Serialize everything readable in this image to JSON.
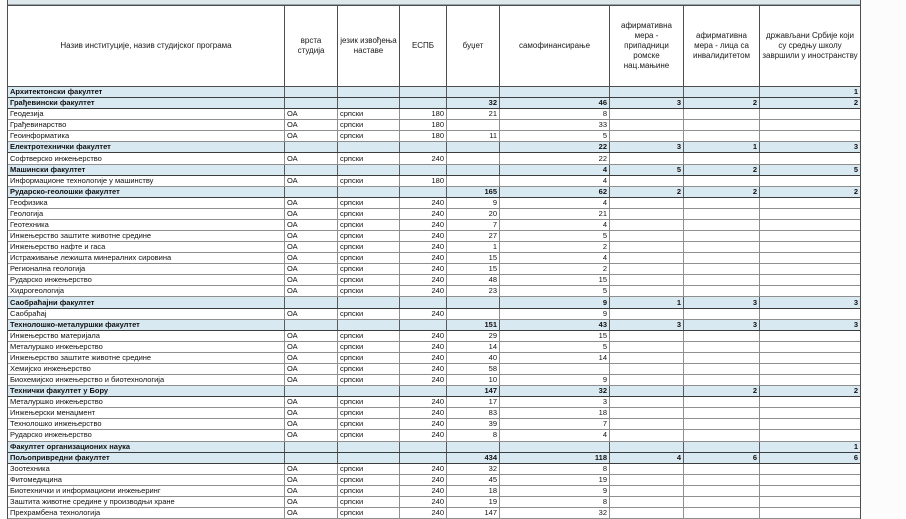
{
  "table": {
    "columns": [
      {
        "key": "n",
        "label": "Назив институције, назив студијског програма",
        "type": "txt"
      },
      {
        "key": "v",
        "label": "врста студија",
        "type": "txt"
      },
      {
        "key": "j",
        "label": "језик извођења наставе",
        "type": "txt"
      },
      {
        "key": "e",
        "label": "ЕСПБ",
        "type": "num"
      },
      {
        "key": "b",
        "label": "буџет",
        "type": "num"
      },
      {
        "key": "s",
        "label": "самофинансирање",
        "type": "num"
      },
      {
        "key": "r",
        "label": "афирмативна мера - припадници ромске нац.мањине",
        "type": "num"
      },
      {
        "key": "i",
        "label": "афирмативна мера - лица са инвалидитетом",
        "type": "num"
      },
      {
        "key": "d",
        "label": "држављани Србије који су средњу школу завршили у иностранству",
        "type": "num"
      }
    ],
    "rows": [
      {
        "type": "section",
        "n": "Архитектонски факултет",
        "v": "",
        "j": "",
        "e": "",
        "b": "",
        "s": "",
        "r": "",
        "i": "",
        "d": "1"
      },
      {
        "type": "section",
        "n": "Грађевински факултет",
        "v": "",
        "j": "",
        "e": "",
        "b": "32",
        "s": "46",
        "r": "3",
        "i": "2",
        "d": "2"
      },
      {
        "type": "program",
        "n": "Геодезија",
        "v": "ОА",
        "j": "српски",
        "e": "180",
        "b": "21",
        "s": "8",
        "r": "",
        "i": "",
        "d": ""
      },
      {
        "type": "program",
        "n": "Грађевинарство",
        "v": "ОА",
        "j": "српски",
        "e": "180",
        "b": "",
        "s": "33",
        "r": "",
        "i": "",
        "d": ""
      },
      {
        "type": "program",
        "n": "Геоинформатика",
        "v": "ОА",
        "j": "српски",
        "e": "180",
        "b": "11",
        "s": "5",
        "r": "",
        "i": "",
        "d": ""
      },
      {
        "type": "section",
        "n": "Електротехнички факултет",
        "v": "",
        "j": "",
        "e": "",
        "b": "",
        "s": "22",
        "r": "3",
        "i": "1",
        "d": "3"
      },
      {
        "type": "program",
        "n": "Софтверско инжењерство",
        "v": "ОА",
        "j": "српски",
        "e": "240",
        "b": "",
        "s": "22",
        "r": "",
        "i": "",
        "d": ""
      },
      {
        "type": "section",
        "n": "Машински факултет",
        "v": "",
        "j": "",
        "e": "",
        "b": "",
        "s": "4",
        "r": "5",
        "i": "2",
        "d": "5"
      },
      {
        "type": "program",
        "n": "Информационе технологије у машинству",
        "v": "ОА",
        "j": "српски",
        "e": "180",
        "b": "",
        "s": "4",
        "r": "",
        "i": "",
        "d": ""
      },
      {
        "type": "section",
        "n": "Рударско-геолошки факултет",
        "v": "",
        "j": "",
        "e": "",
        "b": "165",
        "s": "62",
        "r": "2",
        "i": "2",
        "d": "2"
      },
      {
        "type": "program",
        "n": "Геофизика",
        "v": "ОА",
        "j": "српски",
        "e": "240",
        "b": "9",
        "s": "4",
        "r": "",
        "i": "",
        "d": ""
      },
      {
        "type": "program",
        "n": "Геологија",
        "v": "ОА",
        "j": "српски",
        "e": "240",
        "b": "20",
        "s": "21",
        "r": "",
        "i": "",
        "d": ""
      },
      {
        "type": "program",
        "n": "Геотехника",
        "v": "ОА",
        "j": "српски",
        "e": "240",
        "b": "7",
        "s": "4",
        "r": "",
        "i": "",
        "d": ""
      },
      {
        "type": "program",
        "n": "Инжењерство заштите животне средине",
        "v": "ОА",
        "j": "српски",
        "e": "240",
        "b": "27",
        "s": "5",
        "r": "",
        "i": "",
        "d": ""
      },
      {
        "type": "program",
        "n": "Инжењерство нафте и гаса",
        "v": "ОА",
        "j": "српски",
        "e": "240",
        "b": "1",
        "s": "2",
        "r": "",
        "i": "",
        "d": ""
      },
      {
        "type": "program",
        "n": "Истраживање лежишта минералних сировина",
        "v": "ОА",
        "j": "српски",
        "e": "240",
        "b": "15",
        "s": "4",
        "r": "",
        "i": "",
        "d": ""
      },
      {
        "type": "program",
        "n": "Регионална геологија",
        "v": "ОА",
        "j": "српски",
        "e": "240",
        "b": "15",
        "s": "2",
        "r": "",
        "i": "",
        "d": ""
      },
      {
        "type": "program",
        "n": "Рударско инжењерство",
        "v": "ОА",
        "j": "српски",
        "e": "240",
        "b": "48",
        "s": "15",
        "r": "",
        "i": "",
        "d": ""
      },
      {
        "type": "program",
        "n": "Хидрогеологија",
        "v": "ОА",
        "j": "српски",
        "e": "240",
        "b": "23",
        "s": "5",
        "r": "",
        "i": "",
        "d": ""
      },
      {
        "type": "section",
        "n": "Саобраћајни факултет",
        "v": "",
        "j": "",
        "e": "",
        "b": "",
        "s": "9",
        "r": "1",
        "i": "3",
        "d": "3"
      },
      {
        "type": "program",
        "n": "Саобраћај",
        "v": "ОА",
        "j": "српски",
        "e": "240",
        "b": "",
        "s": "9",
        "r": "",
        "i": "",
        "d": ""
      },
      {
        "type": "section",
        "n": "Технолошко-металуршки факултет",
        "v": "",
        "j": "",
        "e": "",
        "b": "151",
        "s": "43",
        "r": "3",
        "i": "3",
        "d": "3"
      },
      {
        "type": "program",
        "n": "Инжењерство материјала",
        "v": "ОА",
        "j": "српски",
        "e": "240",
        "b": "29",
        "s": "15",
        "r": "",
        "i": "",
        "d": ""
      },
      {
        "type": "program",
        "n": "Металуршко инжењерство",
        "v": "ОА",
        "j": "српски",
        "e": "240",
        "b": "14",
        "s": "5",
        "r": "",
        "i": "",
        "d": ""
      },
      {
        "type": "program",
        "n": "Инжењерство заштите животне средине",
        "v": "ОА",
        "j": "српски",
        "e": "240",
        "b": "40",
        "s": "14",
        "r": "",
        "i": "",
        "d": ""
      },
      {
        "type": "program",
        "n": "Хемијско инжењерство",
        "v": "ОА",
        "j": "српски",
        "e": "240",
        "b": "58",
        "s": "",
        "r": "",
        "i": "",
        "d": ""
      },
      {
        "type": "program",
        "n": "Биохемијско инжењерство и биотехнологија",
        "v": "ОА",
        "j": "српски",
        "e": "240",
        "b": "10",
        "s": "9",
        "r": "",
        "i": "",
        "d": ""
      },
      {
        "type": "section",
        "n": "Технички факултет у Бору",
        "v": "",
        "j": "",
        "e": "",
        "b": "147",
        "s": "32",
        "r": "",
        "i": "2",
        "d": "2"
      },
      {
        "type": "program",
        "n": "Металуршко инжењерство",
        "v": "ОА",
        "j": "српски",
        "e": "240",
        "b": "17",
        "s": "3",
        "r": "",
        "i": "",
        "d": ""
      },
      {
        "type": "program",
        "n": "Инжењерски менаџмент",
        "v": "ОА",
        "j": "српски",
        "e": "240",
        "b": "83",
        "s": "18",
        "r": "",
        "i": "",
        "d": ""
      },
      {
        "type": "program",
        "n": "Технолошко инжењерство",
        "v": "ОА",
        "j": "српски",
        "e": "240",
        "b": "39",
        "s": "7",
        "r": "",
        "i": "",
        "d": ""
      },
      {
        "type": "program",
        "n": "Рударско инжењерство",
        "v": "ОА",
        "j": "српски",
        "e": "240",
        "b": "8",
        "s": "4",
        "r": "",
        "i": "",
        "d": ""
      },
      {
        "type": "section",
        "n": "Факултет организационих наука",
        "v": "",
        "j": "",
        "e": "",
        "b": "",
        "s": "",
        "r": "",
        "i": "",
        "d": "1"
      },
      {
        "type": "section",
        "n": "Пољопривредни факултет",
        "v": "",
        "j": "",
        "e": "",
        "b": "434",
        "s": "118",
        "r": "4",
        "i": "6",
        "d": "6"
      },
      {
        "type": "program",
        "n": "Зоотехника",
        "v": "ОА",
        "j": "српски",
        "e": "240",
        "b": "32",
        "s": "8",
        "r": "",
        "i": "",
        "d": ""
      },
      {
        "type": "program",
        "n": "Фитомедицина",
        "v": "ОА",
        "j": "српски",
        "e": "240",
        "b": "45",
        "s": "19",
        "r": "",
        "i": "",
        "d": ""
      },
      {
        "type": "program",
        "n": "Биотехнички и информациони инжењеринг",
        "v": "ОА",
        "j": "српски",
        "e": "240",
        "b": "18",
        "s": "9",
        "r": "",
        "i": "",
        "d": ""
      },
      {
        "type": "program",
        "n": "Заштита животне средине у производњи хране",
        "v": "ОА",
        "j": "српски",
        "e": "240",
        "b": "19",
        "s": "8",
        "r": "",
        "i": "",
        "d": ""
      },
      {
        "type": "program",
        "n": "Прехрамбена технологија",
        "v": "ОА",
        "j": "српски",
        "e": "240",
        "b": "147",
        "s": "32",
        "r": "",
        "i": "",
        "d": ""
      }
    ]
  },
  "colors": {
    "section_row_bg": "#d9e9f2",
    "top_strip_bg": "#dde8ed",
    "border_dark": "#3c3c3c",
    "border_light": "#8f8f8f"
  }
}
